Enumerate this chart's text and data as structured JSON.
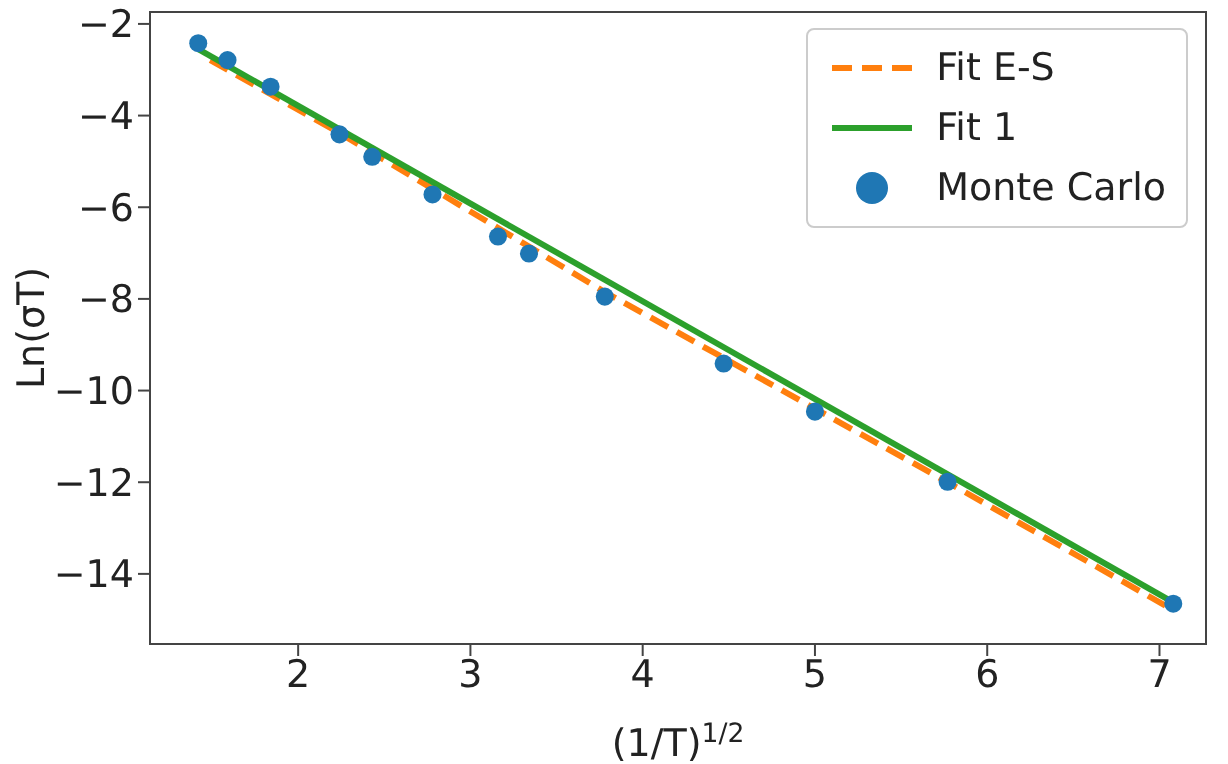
{
  "chart_data": {
    "type": "scatter",
    "xlabel": "(1/T)$^{1/2}$",
    "ylabel": "Ln(σT)",
    "xlim": [
      1.14,
      7.27
    ],
    "xticks": [
      2,
      3,
      4,
      5,
      6,
      7
    ],
    "ylim": [
      -15.53,
      -1.74
    ],
    "yticks": [
      -14,
      -12,
      -10,
      -8,
      -6,
      -4,
      -2
    ],
    "legend": "top right",
    "series": [
      {
        "name": "Fit E-S",
        "type": "line",
        "line_style": "dashed",
        "marker": "none",
        "color": "#ff7f0e",
        "x": [
          1.49,
          2.24,
          3.78,
          5.77,
          7.08
        ],
        "values": [
          -2.79,
          -4.38,
          -7.85,
          -12.0,
          -14.79
        ]
      },
      {
        "name": "Fit 1",
        "type": "line",
        "line_style": "solid",
        "marker": "none",
        "color": "#2ca02c",
        "x": [
          1.42,
          7.08
        ],
        "values": [
          -2.55,
          -14.62
        ]
      },
      {
        "name": "Monte Carlo",
        "marker": "circle",
        "color": "#1f77b4",
        "x": [
          1.42,
          1.59,
          1.84,
          2.24,
          2.43,
          2.78,
          3.16,
          3.34,
          3.78,
          4.47,
          5.0,
          5.77,
          7.08
        ],
        "values": [
          -2.42,
          -2.79,
          -3.37,
          -4.41,
          -4.9,
          -5.72,
          -6.64,
          -7.01,
          -7.95,
          -9.41,
          -10.46,
          -11.99,
          -14.65
        ]
      }
    ]
  }
}
